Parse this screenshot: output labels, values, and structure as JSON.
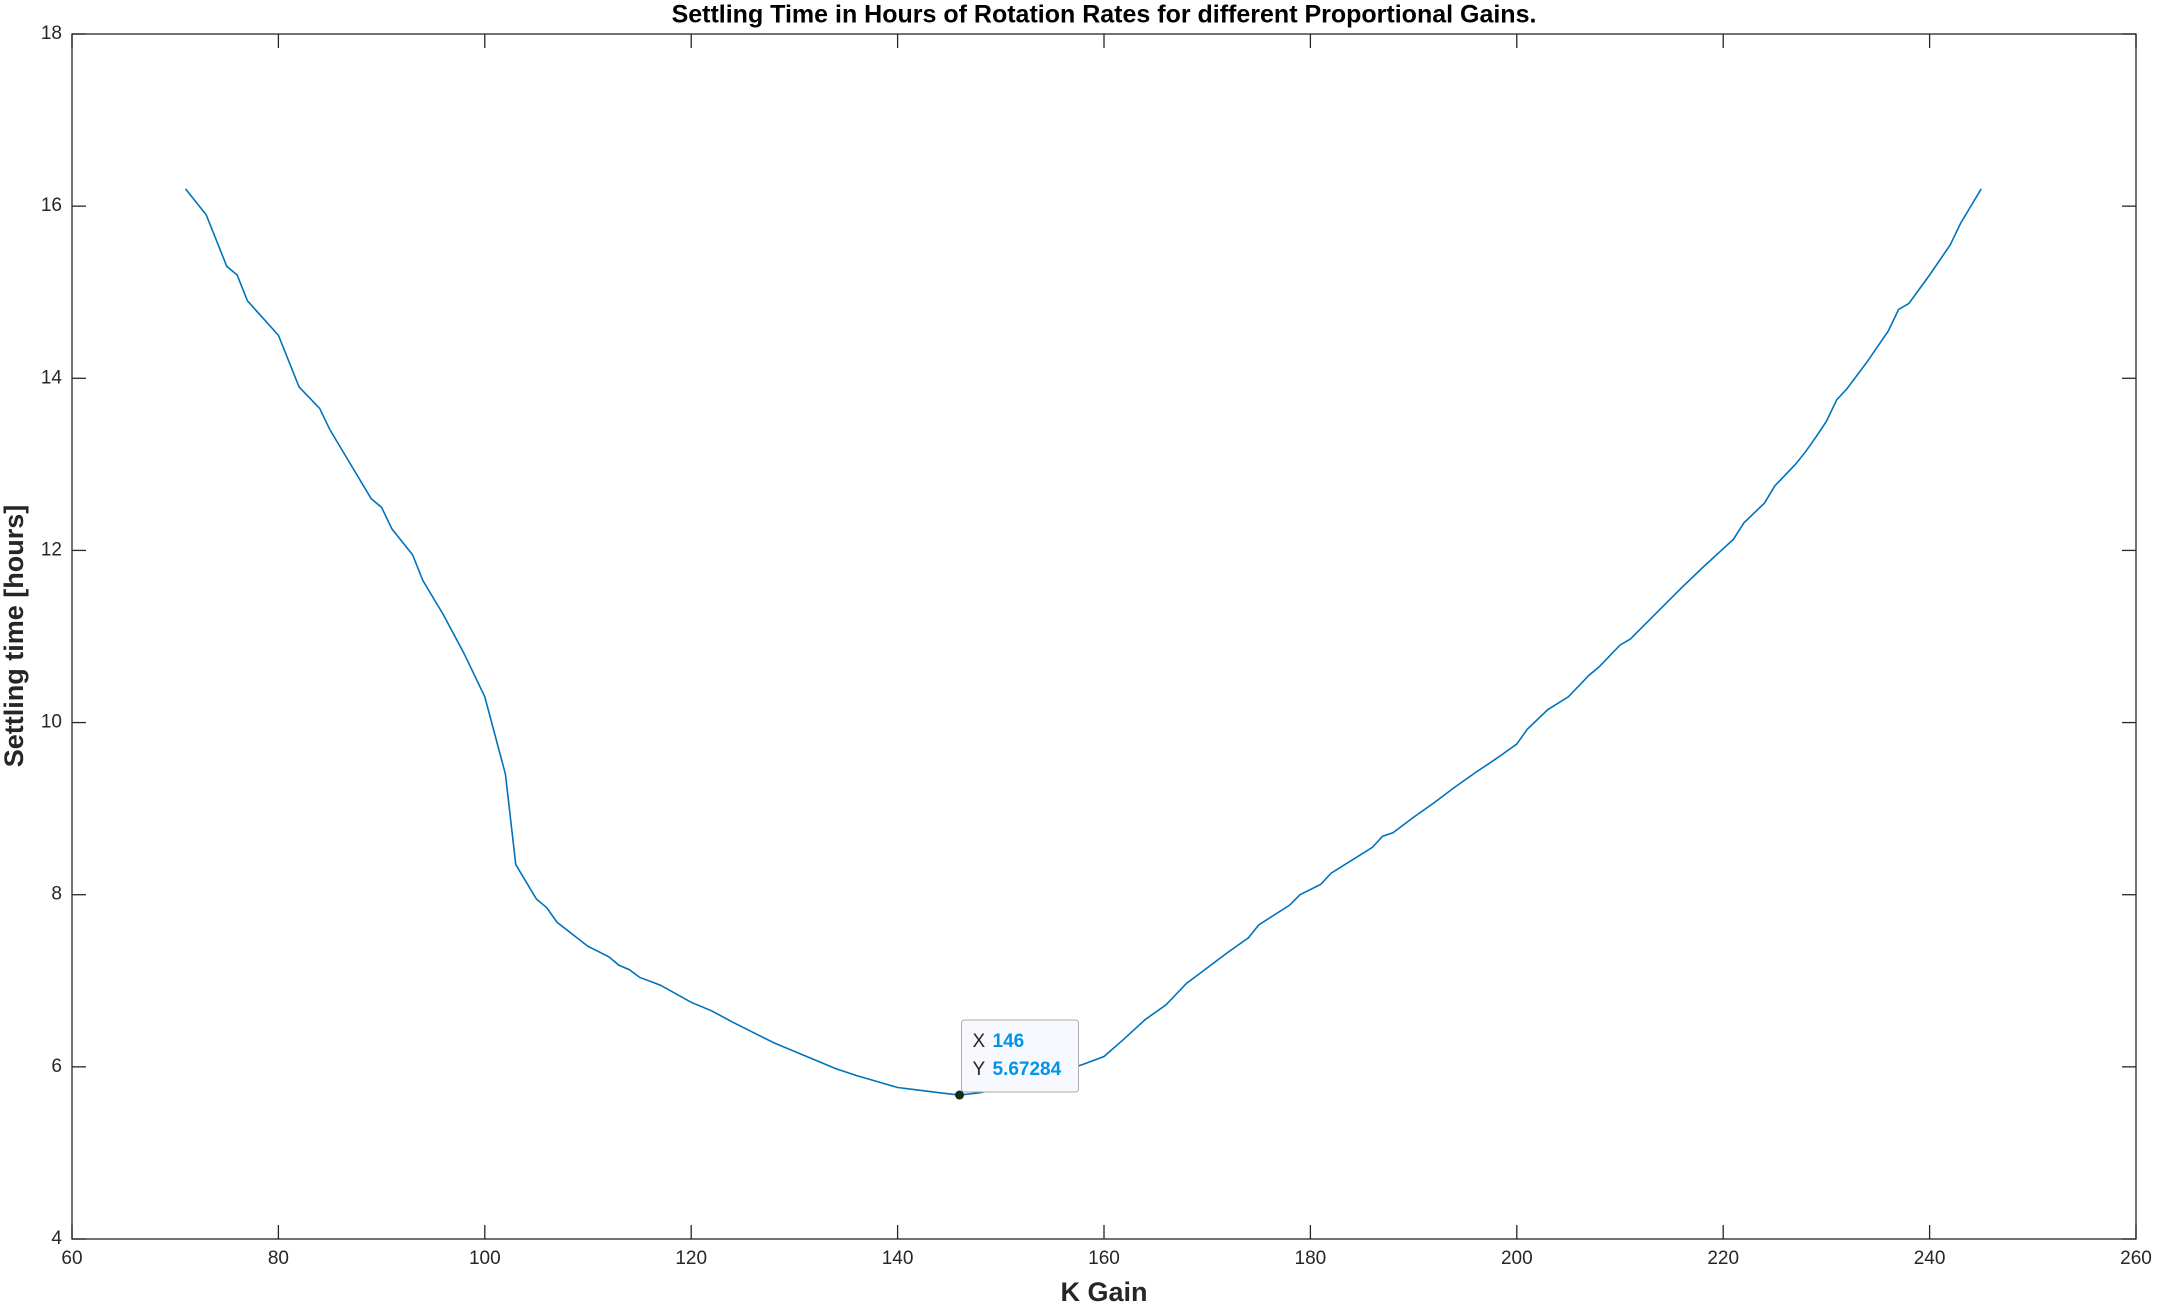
{
  "chart_data": {
    "type": "line",
    "title": "Settling Time in Hours of Rotation Rates for different Proportional Gains.",
    "x_label": "K Gain",
    "y_label": "Settling time [hours]",
    "xlim": [
      60,
      260
    ],
    "xticks": [
      60,
      80,
      100,
      120,
      140,
      160,
      180,
      200,
      220,
      240,
      260
    ],
    "ylim": [
      4,
      18
    ],
    "yticks": [
      4,
      6,
      8,
      10,
      12,
      14,
      16,
      18
    ],
    "grid": false,
    "box": true,
    "series": [
      {
        "color": "#0072bd",
        "x": [
          71,
          73,
          75,
          76,
          77,
          80,
          82,
          84,
          85,
          87,
          89,
          90,
          91,
          93,
          94,
          96,
          98,
          100,
          102,
          103,
          105,
          106,
          107,
          110,
          112,
          113,
          114,
          115,
          117,
          120,
          122,
          124,
          126,
          128,
          130,
          132,
          134,
          136,
          138,
          140,
          142,
          144,
          146,
          148,
          150,
          152,
          154,
          156,
          158,
          160,
          162,
          164,
          166,
          168,
          170,
          172,
          174,
          175,
          178,
          179,
          181,
          182,
          184,
          186,
          187,
          188,
          190,
          192,
          194,
          196,
          198,
          200,
          201,
          203,
          205,
          207,
          208,
          210,
          211,
          214,
          216,
          218,
          220,
          221,
          222,
          224,
          225,
          227,
          228,
          229,
          230,
          231,
          232,
          234,
          236,
          237,
          238,
          240,
          242,
          243,
          244,
          245
        ],
        "values": [
          16.2,
          15.9,
          15.3,
          15.2,
          14.9,
          14.5,
          13.9,
          13.65,
          13.4,
          13.0,
          12.6,
          12.5,
          12.25,
          11.95,
          11.65,
          11.25,
          10.8,
          10.3,
          9.4,
          8.35,
          7.95,
          7.85,
          7.68,
          7.4,
          7.28,
          7.18,
          7.13,
          7.04,
          6.95,
          6.75,
          6.65,
          6.52,
          6.4,
          6.28,
          6.18,
          6.08,
          5.98,
          5.9,
          5.83,
          5.76,
          5.73,
          5.7,
          5.67284,
          5.7,
          5.75,
          5.82,
          5.88,
          5.95,
          6.03,
          6.12,
          6.33,
          6.55,
          6.72,
          6.97,
          7.15,
          7.33,
          7.5,
          7.65,
          7.88,
          8.0,
          8.12,
          8.25,
          8.4,
          8.55,
          8.68,
          8.72,
          8.9,
          9.07,
          9.25,
          9.42,
          9.58,
          9.75,
          9.92,
          10.15,
          10.3,
          10.55,
          10.65,
          10.9,
          10.97,
          11.33,
          11.57,
          11.8,
          12.02,
          12.13,
          12.32,
          12.55,
          12.75,
          13.0,
          13.15,
          13.32,
          13.5,
          13.75,
          13.88,
          14.2,
          14.55,
          14.8,
          14.87,
          15.2,
          15.55,
          15.8,
          16.0,
          16.2
        ]
      }
    ],
    "datatip": {
      "x_label": "X",
      "x": 146,
      "y_label": "Y",
      "y": 5.67284,
      "color": "#0095e6"
    }
  }
}
